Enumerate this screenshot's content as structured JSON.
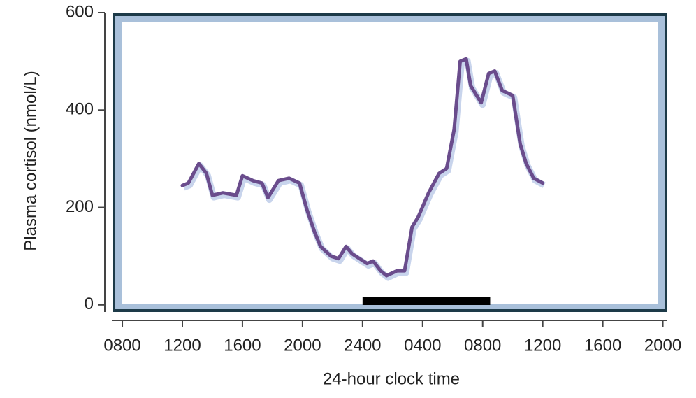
{
  "chart_data": {
    "type": "line",
    "ylabel": "Plasma cortisol (nmol/L)",
    "xlabel": "24-hour clock time",
    "xlim": [
      7.3,
      44.3
    ],
    "ylim": [
      -6,
      600
    ],
    "yticks": [
      0,
      200,
      400,
      600
    ],
    "xticks": [
      {
        "value": 8,
        "label": "0800"
      },
      {
        "value": 12,
        "label": "1200"
      },
      {
        "value": 16,
        "label": "1600"
      },
      {
        "value": 20,
        "label": "2000"
      },
      {
        "value": 24,
        "label": "2400"
      },
      {
        "value": 28,
        "label": "0400"
      },
      {
        "value": 32,
        "label": "0800"
      },
      {
        "value": 36,
        "label": "1200"
      },
      {
        "value": 40,
        "label": "1600"
      },
      {
        "value": 44,
        "label": "2000"
      }
    ],
    "series": [
      {
        "color": "#6a4c8c",
        "x": [
          12.0,
          12.4,
          13.1,
          13.6,
          14.0,
          14.7,
          15.6,
          16.0,
          16.7,
          17.3,
          17.7,
          18.4,
          19.1,
          19.8,
          20.3,
          20.8,
          21.2,
          21.9,
          22.4,
          22.9,
          23.3,
          23.8,
          24.3,
          24.7,
          25.2,
          25.6,
          26.3,
          26.8,
          27.3,
          27.7,
          28.4,
          29.1,
          29.6,
          30.1,
          30.5,
          30.9,
          31.2,
          31.9,
          32.4,
          32.8,
          33.3,
          34.0,
          34.5,
          34.9,
          35.4,
          36.0
        ],
        "values": [
          245,
          250,
          290,
          270,
          225,
          230,
          225,
          265,
          255,
          250,
          220,
          255,
          260,
          250,
          195,
          150,
          120,
          100,
          95,
          120,
          105,
          95,
          85,
          90,
          70,
          60,
          70,
          70,
          160,
          180,
          230,
          270,
          280,
          360,
          500,
          505,
          450,
          415,
          475,
          480,
          440,
          430,
          330,
          290,
          260,
          250
        ]
      }
    ],
    "sleep_bar": [
      24.0,
      32.5
    ]
  }
}
